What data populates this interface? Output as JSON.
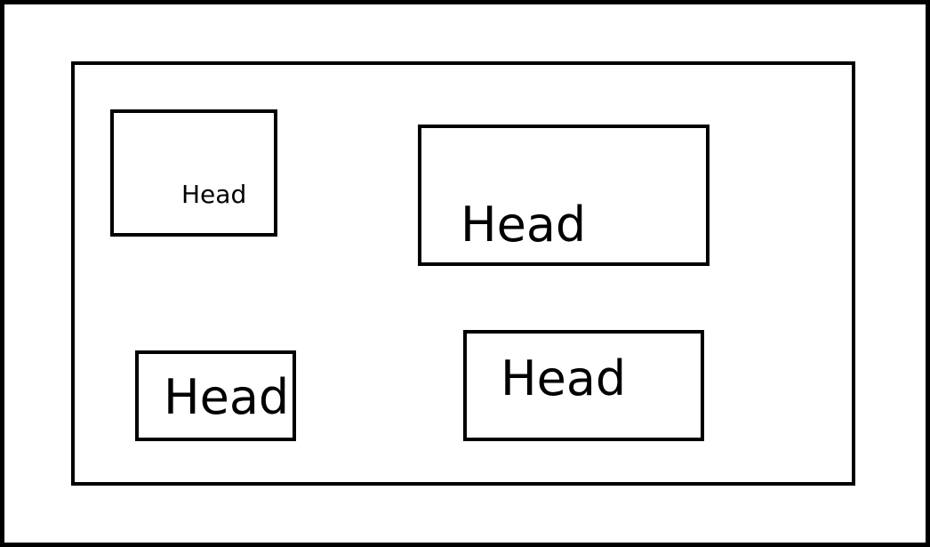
{
  "diagram": {
    "boxes": [
      {
        "id": "box-1",
        "label": "Head"
      },
      {
        "id": "box-2",
        "label": "Head"
      },
      {
        "id": "box-3",
        "label": "Head"
      },
      {
        "id": "box-4",
        "label": "Head"
      }
    ],
    "colors": {
      "stroke": "#000000",
      "background": "#ffffff",
      "text": "#000000"
    }
  }
}
